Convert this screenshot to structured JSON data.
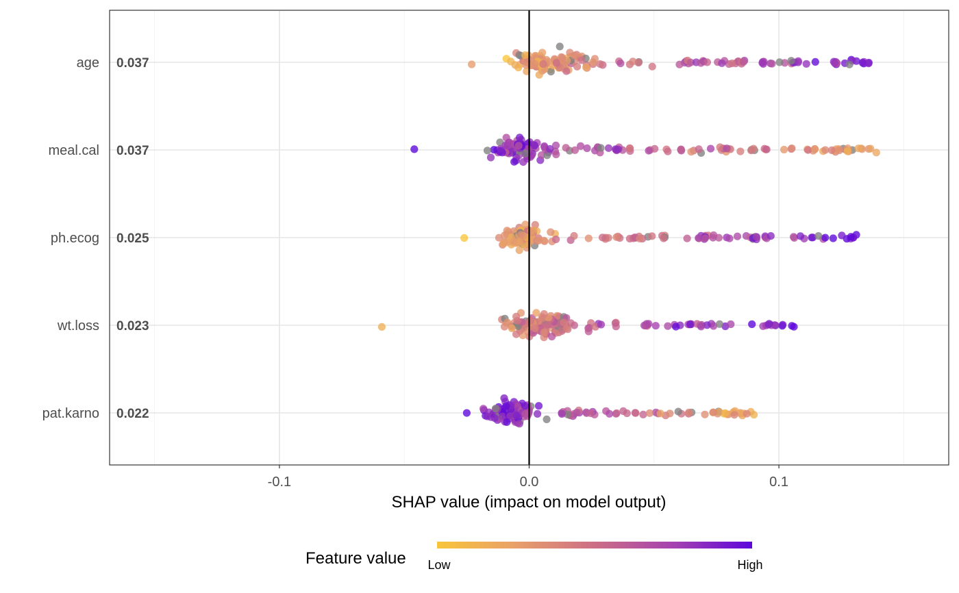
{
  "chart_data": {
    "type": "scatter",
    "subtype": "shap-beeswarm",
    "xlabel": "SHAP value (impact on model output)",
    "xlim": [
      -0.168,
      0.168
    ],
    "xticks": [
      -0.1,
      0.0,
      0.1
    ],
    "xtick_labels": [
      "-0.1",
      "0.0",
      "0.1"
    ],
    "grid": true,
    "zero_line": true,
    "features": [
      {
        "name": "age",
        "importance": "0.037",
        "x_min": -0.023,
        "x_max": 0.136
      },
      {
        "name": "meal.cal",
        "importance": "0.037",
        "x_min": -0.046,
        "x_max": 0.139
      },
      {
        "name": "ph.ecog",
        "importance": "0.025",
        "x_min": -0.026,
        "x_max": 0.131
      },
      {
        "name": "wt.loss",
        "importance": "0.023",
        "x_min": -0.059,
        "x_max": 0.106
      },
      {
        "name": "pat.karno",
        "importance": "0.022",
        "x_min": -0.025,
        "x_max": 0.09
      }
    ],
    "legend": {
      "title": "Feature value",
      "low_label": "Low",
      "high_label": "High",
      "position": "bottom",
      "colors": [
        "#f8c53a",
        "#e8a06a",
        "#cc6e86",
        "#a542b0",
        "#5d06dc"
      ],
      "missing_color": "#808080"
    }
  }
}
